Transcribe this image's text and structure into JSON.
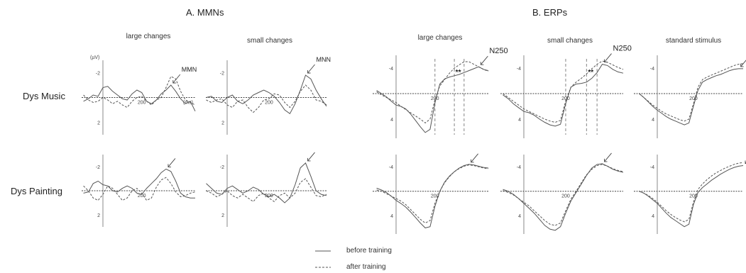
{
  "figure": {
    "section_a_title": "A. MMNs",
    "section_b_title": "B. ERPs",
    "columns": [
      "large changes",
      "small changes",
      "large changes",
      "small changes",
      "standard stimulus"
    ],
    "rows": [
      "Dys Music",
      "Dys Painting"
    ],
    "legend": [
      {
        "label": "before training",
        "style": "solid"
      },
      {
        "label": "after training",
        "style": "dashed"
      }
    ],
    "colors": {
      "line": "#555555",
      "axis": "#888888"
    }
  },
  "chart_data": [
    {
      "type": "line",
      "panel": "A. MMNs / large changes / Dys Music",
      "y_unit_label": "(µV)",
      "x_unit_label": "(ms)",
      "y_inverted": true,
      "ylim": [
        3,
        -3
      ],
      "yticks": [
        -2,
        2
      ],
      "xtick": 200,
      "annotations": [
        "MMN"
      ],
      "marker": "arrow",
      "x": [
        -100,
        -75,
        -50,
        -25,
        0,
        25,
        50,
        75,
        100,
        125,
        150,
        175,
        200,
        225,
        250,
        275,
        300,
        325,
        350,
        375,
        400,
        425,
        450,
        475
      ],
      "series": [
        {
          "name": "before training",
          "values": [
            0.3,
            0.1,
            -0.2,
            -0.1,
            -0.8,
            -0.9,
            -0.5,
            -0.2,
            0.1,
            0.2,
            -0.3,
            -0.6,
            -0.4,
            0.3,
            0.5,
            0.2,
            -0.3,
            -0.6,
            -1.0,
            -0.5,
            0.1,
            0.5,
            0.3,
            1.1
          ]
        },
        {
          "name": "after training",
          "values": [
            -0.2,
            0.2,
            0.4,
            0.3,
            0.0,
            0.2,
            0.5,
            0.3,
            0.6,
            0.8,
            0.3,
            0.0,
            -0.1,
            0.3,
            0.6,
            0.2,
            0.0,
            -0.8,
            -1.7,
            -1.5,
            -0.5,
            0.2,
            0.4,
            0.6
          ]
        }
      ]
    },
    {
      "type": "line",
      "panel": "A. MMNs / small changes / Dys Music",
      "y_inverted": true,
      "ylim": [
        3,
        -3
      ],
      "yticks": [
        -2,
        2
      ],
      "xtick": 200,
      "annotations": [
        "MNN"
      ],
      "marker": "arrow",
      "x": [
        -100,
        -75,
        -50,
        -25,
        0,
        25,
        50,
        75,
        100,
        125,
        150,
        175,
        200,
        225,
        250,
        275,
        300,
        325,
        350,
        375,
        400,
        425,
        450,
        475
      ],
      "series": [
        {
          "name": "before training",
          "values": [
            0.0,
            -0.1,
            0.3,
            0.4,
            0.0,
            -0.2,
            0.3,
            0.5,
            0.2,
            -0.2,
            -0.4,
            -0.6,
            -0.4,
            -0.1,
            0.4,
            1.0,
            1.3,
            0.5,
            -0.6,
            -1.8,
            -1.5,
            -0.6,
            0.1,
            0.7
          ]
        },
        {
          "name": "after training",
          "values": [
            0.2,
            0.4,
            0.2,
            0.1,
            0.6,
            0.8,
            0.3,
            0.2,
            0.8,
            1.2,
            0.8,
            0.2,
            0.1,
            -0.3,
            -0.2,
            0.4,
            0.8,
            0.3,
            -0.5,
            -1.0,
            -0.6,
            0.2,
            0.3,
            0.6
          ]
        }
      ]
    },
    {
      "type": "line",
      "panel": "B. ERPs / large changes / Dys Music",
      "y_inverted": true,
      "ylim": [
        7,
        -6
      ],
      "yticks": [
        -4,
        4
      ],
      "xtick": 200,
      "annotations": [
        "N250",
        "**"
      ],
      "marker": "arrow",
      "vlines": [
        200,
        300,
        350
      ],
      "x": [
        -100,
        -75,
        -50,
        -25,
        0,
        25,
        50,
        75,
        100,
        125,
        150,
        175,
        200,
        225,
        250,
        275,
        300,
        325,
        350,
        375,
        400,
        425,
        450,
        475
      ],
      "series": [
        {
          "name": "before training",
          "values": [
            -0.5,
            0.0,
            0.5,
            1.2,
            1.8,
            2.0,
            2.4,
            3.2,
            4.2,
            5.2,
            6.1,
            5.6,
            1.5,
            -1.5,
            -2.3,
            -2.6,
            -2.8,
            -3.0,
            -3.3,
            -3.6,
            -3.9,
            -4.2,
            -3.8,
            -3.6
          ]
        },
        {
          "name": "after training",
          "values": [
            -0.3,
            0.2,
            0.6,
            1.0,
            1.4,
            2.0,
            2.5,
            3.0,
            3.5,
            4.0,
            4.6,
            4.0,
            1.0,
            -1.2,
            -2.2,
            -3.2,
            -4.0,
            -4.5,
            -5.0,
            -5.0,
            -4.6,
            -4.2,
            -3.8,
            -3.5
          ]
        }
      ]
    },
    {
      "type": "line",
      "panel": "B. ERPs / small changes / Dys Music",
      "y_inverted": true,
      "ylim": [
        7,
        -6
      ],
      "yticks": [
        -4,
        4
      ],
      "xtick": 200,
      "annotations": [
        "N250",
        "**"
      ],
      "marker": "arrow",
      "vlines": [
        200,
        300,
        350
      ],
      "x": [
        -100,
        -75,
        -50,
        -25,
        0,
        25,
        50,
        75,
        100,
        125,
        150,
        175,
        200,
        225,
        250,
        275,
        300,
        325,
        350,
        375,
        400,
        425,
        450,
        475
      ],
      "series": [
        {
          "name": "before training",
          "values": [
            0.2,
            0.8,
            1.6,
            2.2,
            2.8,
            3.0,
            3.4,
            4.0,
            4.5,
            4.9,
            5.1,
            4.8,
            1.6,
            -1.0,
            -1.5,
            -1.6,
            -1.8,
            -2.4,
            -3.3,
            -4.6,
            -4.4,
            -3.8,
            -3.4,
            -3.2
          ]
        },
        {
          "name": "after training",
          "values": [
            0.0,
            0.6,
            1.2,
            1.8,
            2.4,
            2.8,
            3.2,
            3.6,
            4.0,
            4.3,
            4.5,
            4.2,
            1.2,
            -1.0,
            -1.8,
            -2.4,
            -3.1,
            -3.9,
            -4.6,
            -5.1,
            -4.9,
            -4.5,
            -4.1,
            -3.8
          ]
        }
      ]
    },
    {
      "type": "line",
      "panel": "B. ERPs / standard stimulus / Dys Music",
      "y_inverted": true,
      "ylim": [
        7,
        -6
      ],
      "yticks": [
        -4,
        4
      ],
      "xtick": 200,
      "annotations": [
        "N250"
      ],
      "marker": "arrow",
      "x": [
        -100,
        -75,
        -50,
        -25,
        0,
        25,
        50,
        75,
        100,
        125,
        150,
        175,
        200,
        225,
        250,
        275,
        300,
        325,
        350,
        375,
        400,
        425,
        450,
        475
      ],
      "series": [
        {
          "name": "before training",
          "values": [
            0.0,
            0.6,
            1.3,
            2.0,
            2.6,
            3.1,
            3.6,
            4.0,
            4.3,
            4.6,
            4.9,
            4.6,
            2.0,
            -0.5,
            -1.8,
            -2.2,
            -2.5,
            -2.8,
            -3.0,
            -3.3,
            -3.6,
            -3.8,
            -3.9,
            -3.9
          ]
        },
        {
          "name": "after training",
          "values": [
            0.0,
            0.6,
            1.2,
            1.8,
            2.3,
            2.8,
            3.2,
            3.5,
            3.8,
            4.1,
            4.3,
            4.0,
            1.6,
            -1.0,
            -2.2,
            -2.6,
            -2.9,
            -3.2,
            -3.5,
            -3.8,
            -4.1,
            -4.4,
            -4.6,
            -4.7
          ]
        }
      ]
    },
    {
      "type": "line",
      "panel": "A. MMNs / large changes / Dys Painting",
      "y_inverted": true,
      "ylim": [
        3,
        -3
      ],
      "yticks": [
        -2,
        2
      ],
      "xtick": 200,
      "marker": "arrow",
      "x": [
        -100,
        -75,
        -50,
        -25,
        0,
        25,
        50,
        75,
        100,
        125,
        150,
        175,
        200,
        225,
        250,
        275,
        300,
        325,
        350,
        375,
        400,
        425,
        450,
        475
      ],
      "series": [
        {
          "name": "before training",
          "values": [
            0.2,
            0.1,
            -0.6,
            -0.8,
            -0.5,
            -0.4,
            0.0,
            0.1,
            -0.2,
            -0.4,
            -0.2,
            0.2,
            0.3,
            -0.2,
            -0.6,
            -1.0,
            -1.5,
            -1.8,
            -1.6,
            -0.8,
            0.2,
            0.5,
            0.6,
            0.6
          ]
        },
        {
          "name": "after training",
          "values": [
            -0.4,
            0.0,
            0.6,
            0.8,
            0.3,
            -0.4,
            -0.2,
            0.3,
            0.8,
            0.6,
            0.0,
            -0.2,
            0.2,
            0.8,
            0.6,
            -0.3,
            -0.9,
            -1.1,
            -0.6,
            0.1,
            0.5,
            0.4,
            0.2,
            0.1
          ]
        }
      ]
    },
    {
      "type": "line",
      "panel": "A. MMNs / small changes / Dys Painting",
      "y_inverted": true,
      "ylim": [
        3,
        -3
      ],
      "yticks": [
        -2,
        2
      ],
      "xtick": 200,
      "marker": "arrow",
      "x": [
        -100,
        -75,
        -50,
        -25,
        0,
        25,
        50,
        75,
        100,
        125,
        150,
        175,
        200,
        225,
        250,
        275,
        300,
        325,
        350,
        375,
        400,
        425,
        450,
        475
      ],
      "series": [
        {
          "name": "before training",
          "values": [
            -0.6,
            -0.2,
            0.2,
            0.3,
            -0.2,
            -0.4,
            -0.1,
            0.2,
            0.0,
            -0.3,
            -0.1,
            0.3,
            0.5,
            0.3,
            0.6,
            1.0,
            0.6,
            -0.5,
            -1.9,
            -2.3,
            -1.2,
            0.0,
            0.3,
            0.4
          ]
        },
        {
          "name": "after training",
          "values": [
            0.0,
            0.2,
            0.5,
            0.3,
            0.0,
            0.4,
            0.6,
            0.3,
            0.6,
            0.9,
            0.4,
            0.2,
            0.6,
            0.9,
            0.4,
            0.2,
            0.6,
            0.2,
            -0.7,
            -1.0,
            -0.3,
            0.4,
            0.5,
            0.3
          ]
        }
      ]
    },
    {
      "type": "line",
      "panel": "B. ERPs / large changes / Dys Painting",
      "y_inverted": true,
      "ylim": [
        7,
        -6
      ],
      "yticks": [
        -4,
        4
      ],
      "xtick": 200,
      "marker": "arrow",
      "x": [
        -100,
        -75,
        -50,
        -25,
        0,
        25,
        50,
        75,
        100,
        125,
        150,
        175,
        200,
        225,
        250,
        275,
        300,
        325,
        350,
        375,
        400,
        425,
        450,
        475
      ],
      "series": [
        {
          "name": "before training",
          "values": [
            -0.5,
            -0.2,
            0.2,
            0.8,
            1.5,
            2.0,
            2.6,
            3.4,
            4.3,
            5.2,
            6.0,
            5.8,
            2.5,
            0.0,
            -1.5,
            -2.5,
            -3.2,
            -3.8,
            -4.2,
            -4.4,
            -4.3,
            -4.1,
            -3.9,
            -3.8
          ]
        },
        {
          "name": "after training",
          "values": [
            -0.2,
            0.0,
            0.4,
            0.8,
            1.2,
            1.6,
            2.2,
            3.0,
            3.8,
            4.6,
            5.2,
            4.8,
            2.0,
            0.0,
            -1.4,
            -2.4,
            -3.2,
            -3.7,
            -4.1,
            -4.3,
            -4.2,
            -4.0,
            -3.8,
            -3.7
          ]
        }
      ]
    },
    {
      "type": "line",
      "panel": "B. ERPs / small changes / Dys Painting",
      "y_inverted": true,
      "ylim": [
        7,
        -6
      ],
      "yticks": [
        -4,
        4
      ],
      "xtick": 200,
      "marker": "arrow",
      "x": [
        -100,
        -75,
        -50,
        -25,
        0,
        25,
        50,
        75,
        100,
        125,
        150,
        175,
        200,
        225,
        250,
        275,
        300,
        325,
        350,
        375,
        400,
        425,
        450,
        475
      ],
      "series": [
        {
          "name": "before training",
          "values": [
            -0.3,
            0.0,
            0.5,
            1.2,
            2.0,
            2.8,
            3.6,
            4.6,
            5.6,
            6.2,
            6.4,
            5.8,
            3.6,
            1.6,
            0.2,
            -1.2,
            -2.6,
            -3.8,
            -4.4,
            -4.5,
            -4.1,
            -3.6,
            -3.3,
            -3.1
          ]
        },
        {
          "name": "after training",
          "values": [
            -0.1,
            0.2,
            0.6,
            1.2,
            1.8,
            2.4,
            3.2,
            4.0,
            4.8,
            5.4,
            5.6,
            5.2,
            3.2,
            1.3,
            0.0,
            -1.4,
            -2.7,
            -3.6,
            -4.2,
            -4.4,
            -4.1,
            -3.7,
            -3.4,
            -3.2
          ]
        }
      ]
    },
    {
      "type": "line",
      "panel": "B. ERPs / standard stimulus / Dys Painting",
      "y_inverted": true,
      "ylim": [
        7,
        -6
      ],
      "yticks": [
        -4,
        4
      ],
      "xtick": 200,
      "marker": "arrow",
      "x": [
        -100,
        -75,
        -50,
        -25,
        0,
        25,
        50,
        75,
        100,
        125,
        150,
        175,
        200,
        225,
        250,
        275,
        300,
        325,
        350,
        375,
        400,
        425,
        450,
        475
      ],
      "series": [
        {
          "name": "before training",
          "values": [
            0.0,
            0.3,
            0.8,
            1.4,
            2.0,
            2.8,
            3.6,
            4.3,
            4.8,
            5.3,
            5.8,
            5.4,
            2.2,
            0.2,
            -0.6,
            -1.2,
            -1.8,
            -2.3,
            -2.8,
            -3.2,
            -3.6,
            -3.9,
            -4.1,
            -4.2
          ]
        },
        {
          "name": "after training",
          "values": [
            0.0,
            0.3,
            0.7,
            1.2,
            1.8,
            2.5,
            3.2,
            3.8,
            4.3,
            4.7,
            5.0,
            4.6,
            1.8,
            -0.3,
            -1.2,
            -1.9,
            -2.5,
            -3.0,
            -3.4,
            -3.8,
            -4.1,
            -4.4,
            -4.6,
            -4.7
          ]
        }
      ]
    }
  ]
}
